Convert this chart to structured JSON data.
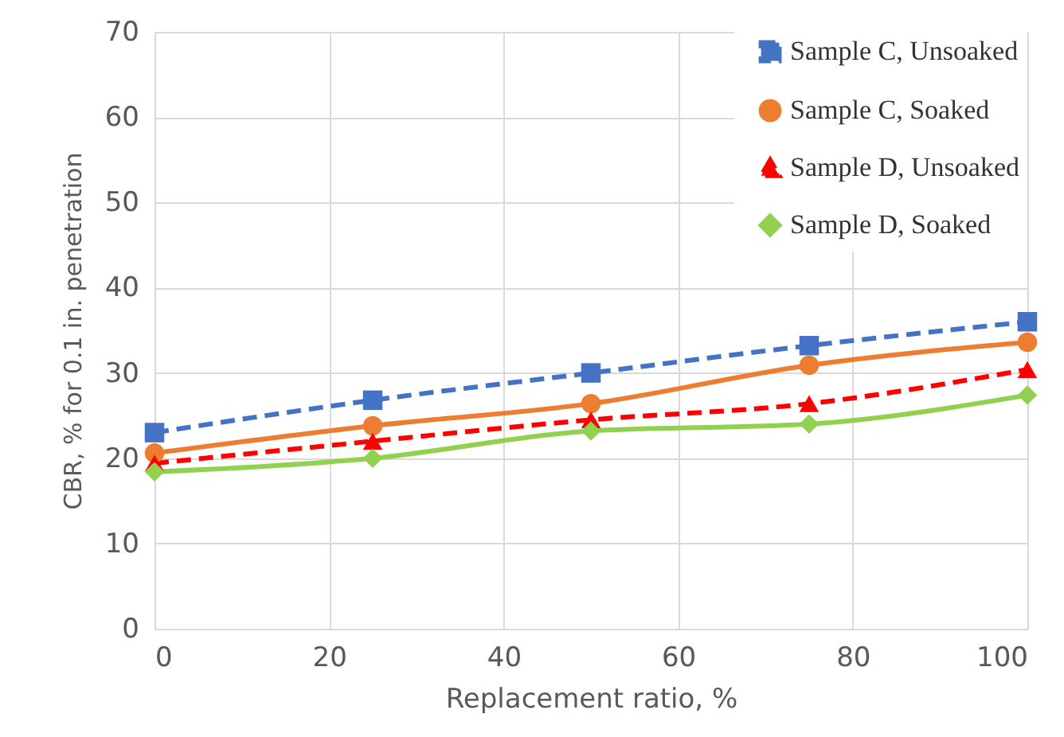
{
  "chart_data": {
    "type": "line",
    "xlabel": "Replacement ratio, %",
    "ylabel": "CBR, % for 0.1 in. penetration",
    "x": [
      0,
      25,
      50,
      75,
      100
    ],
    "series": [
      {
        "name": "Sample C, Unsoaked",
        "color": "#4472c4",
        "marker": "square",
        "line_style": "dashed",
        "values": [
          23,
          26.8,
          30,
          33.2,
          36
        ]
      },
      {
        "name": "Sample C, Soaked",
        "color": "#ed7d31",
        "marker": "circle",
        "line_style": "solid",
        "values": [
          20.6,
          23.8,
          26.4,
          30.9,
          33.6
        ]
      },
      {
        "name": "Sample D, Unsoaked",
        "color": "#ff0000",
        "marker": "triangle",
        "line_style": "dashed",
        "values": [
          19.4,
          22,
          24.5,
          26.4,
          30.4
        ]
      },
      {
        "name": "Sample D, Soaked",
        "color": "#92d050",
        "marker": "diamond",
        "line_style": "solid",
        "values": [
          18.4,
          20,
          23.2,
          24,
          27.4
        ]
      }
    ],
    "xlim": [
      0,
      100
    ],
    "xticks": [
      0,
      20,
      40,
      60,
      80,
      100
    ],
    "ylim": [
      0,
      70
    ],
    "yticks": [
      0,
      10,
      20,
      30,
      40,
      50,
      60,
      70
    ],
    "grid": true,
    "legend": "top right"
  }
}
